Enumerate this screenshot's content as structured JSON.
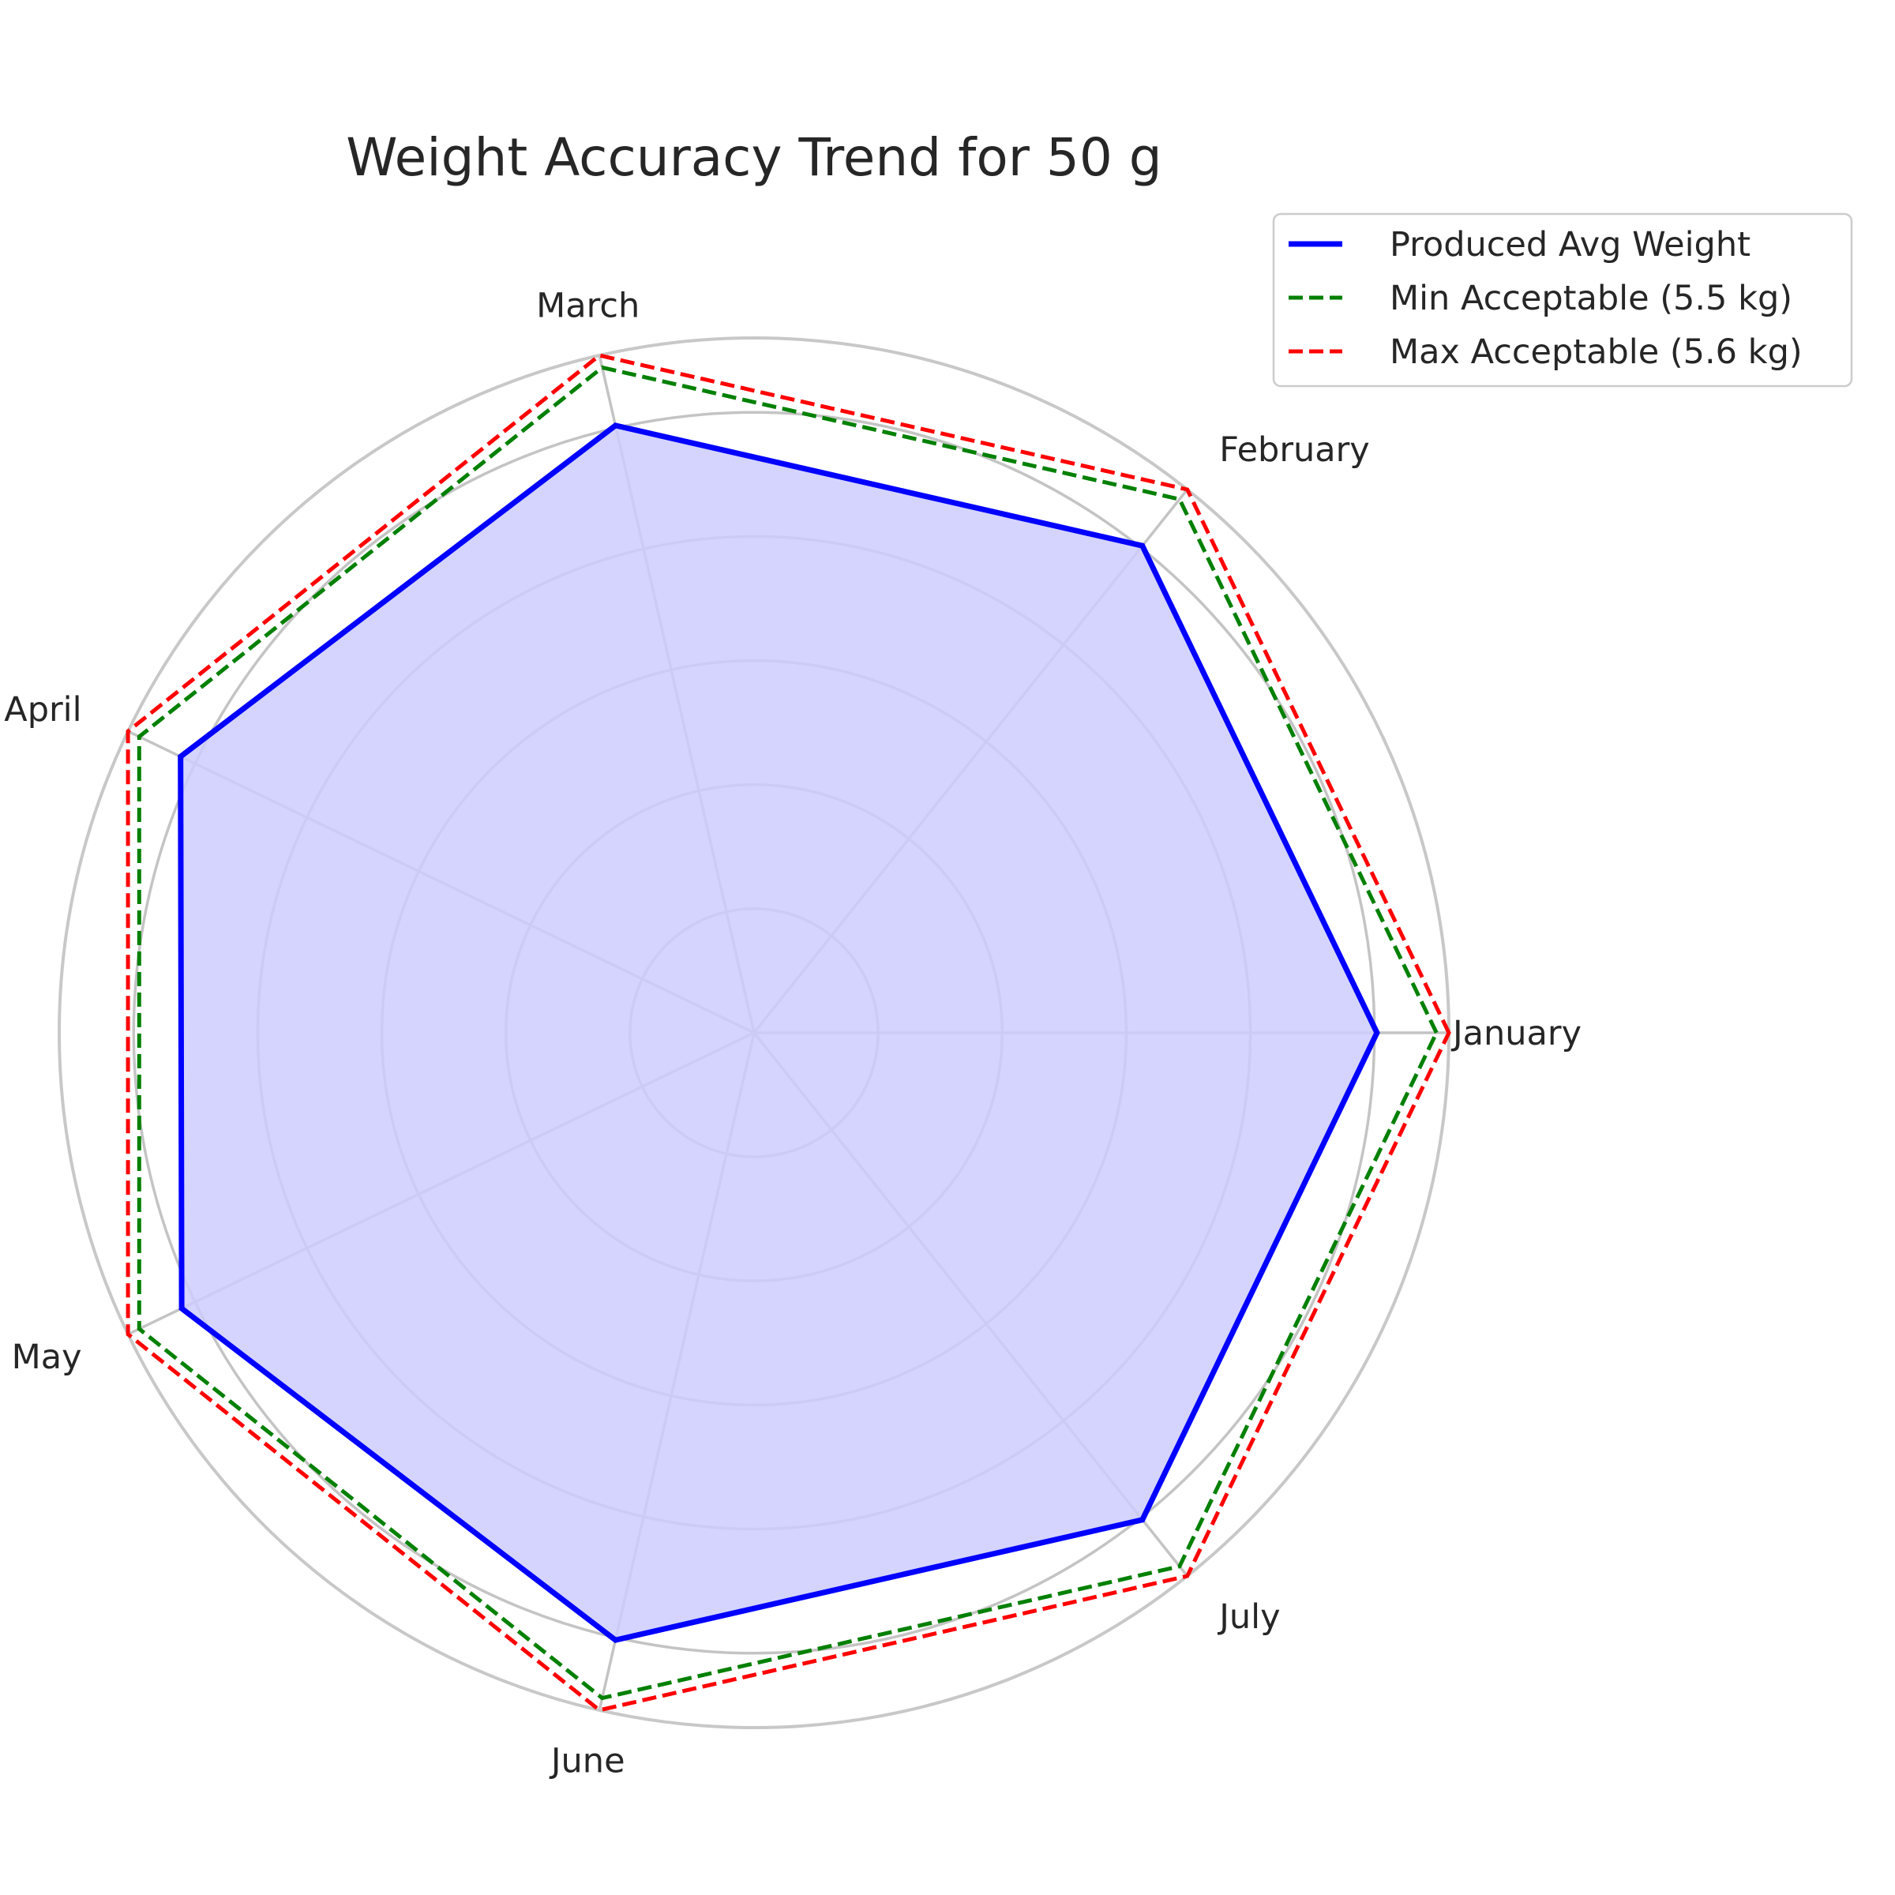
{
  "chart_data": {
    "type": "radar",
    "title": "Weight Accuracy Trend for 50 g",
    "categories": [
      "January",
      "February",
      "March",
      "April",
      "May",
      "June",
      "July"
    ],
    "rmax": 5.6,
    "rings": [
      1.0,
      2.0,
      3.0,
      4.0,
      5.0
    ],
    "grid": true,
    "legend_position": "top-right",
    "series": [
      {
        "name": "Produced Avg Weight",
        "values": [
          5.02,
          5.02,
          5.02,
          5.13,
          5.12,
          5.02,
          5.02
        ],
        "color": "#0000ff",
        "style": "solid",
        "fill": "#ccccff"
      },
      {
        "name": "Min Acceptable (5.5 kg)",
        "values": [
          5.5,
          5.5,
          5.5,
          5.5,
          5.5,
          5.5,
          5.5
        ],
        "color": "#008000",
        "style": "dashed"
      },
      {
        "name": "Max Acceptable (5.6 kg)",
        "values": [
          5.6,
          5.6,
          5.6,
          5.6,
          5.6,
          5.6,
          5.6
        ],
        "color": "#ff0000",
        "style": "dashed"
      }
    ]
  }
}
